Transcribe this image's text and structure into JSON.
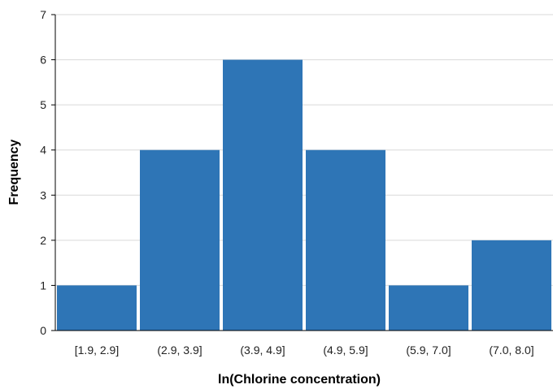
{
  "chart_data": {
    "type": "bar",
    "title": "",
    "xlabel": "ln(Chlorine concentration)",
    "ylabel": "Frequency",
    "categories": [
      "[1.9, 2.9]",
      "(2.9, 3.9]",
      "(3.9, 4.9]",
      "(4.9, 5.9]",
      "(5.9, 7.0]",
      "(7.0, 8.0]"
    ],
    "values": [
      1,
      4,
      6,
      4,
      1,
      2
    ],
    "ylim": [
      0,
      7
    ],
    "yticks": [
      "0",
      "1",
      "2",
      "3",
      "4",
      "5",
      "6",
      "7"
    ],
    "grid": true,
    "legend": "none",
    "bar_color": "#2E75B6",
    "grid_color": "#D9D9D9",
    "axis_color": "#000000"
  }
}
